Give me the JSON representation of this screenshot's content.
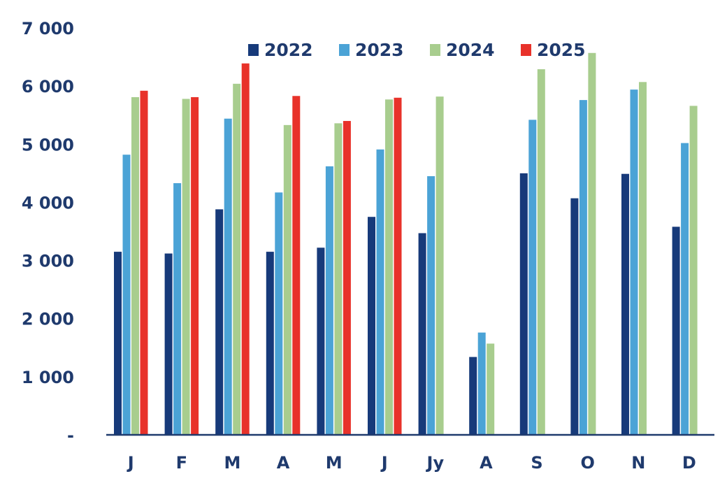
{
  "chart_data": {
    "type": "bar",
    "categories": [
      "J",
      "F",
      "M",
      "A",
      "M",
      "J",
      "Jy",
      "A",
      "S",
      "O",
      "N",
      "D"
    ],
    "series": [
      {
        "name": "2022",
        "color": "#173a7a",
        "values": [
          3150,
          3120,
          3880,
          3150,
          3220,
          3750,
          3470,
          1340,
          4500,
          4070,
          4490,
          3580
        ]
      },
      {
        "name": "2023",
        "color": "#4ba3d6",
        "values": [
          4820,
          4330,
          5440,
          4170,
          4620,
          4910,
          4450,
          1760,
          5420,
          5760,
          5940,
          5020
        ]
      },
      {
        "name": "2024",
        "color": "#a8cd8e",
        "values": [
          5810,
          5780,
          6040,
          5330,
          5360,
          5770,
          5820,
          1570,
          6290,
          6570,
          6070,
          5660
        ]
      },
      {
        "name": "2025",
        "color": "#e8322a",
        "values": [
          5920,
          5810,
          6390,
          5830,
          5400,
          5800,
          null,
          null,
          null,
          null,
          null,
          null
        ]
      }
    ],
    "ylim": [
      0,
      7000
    ],
    "yticks": [
      {
        "value": 0,
        "label": "-"
      },
      {
        "value": 1000,
        "label": "1 000"
      },
      {
        "value": 2000,
        "label": "2 000"
      },
      {
        "value": 3000,
        "label": "3 000"
      },
      {
        "value": 4000,
        "label": "4 000"
      },
      {
        "value": 5000,
        "label": "5 000"
      },
      {
        "value": 6000,
        "label": "6 000"
      },
      {
        "value": 7000,
        "label": "7 000"
      }
    ],
    "grid": false,
    "legend": "top-center",
    "axis_color": "#1f3a6d"
  }
}
